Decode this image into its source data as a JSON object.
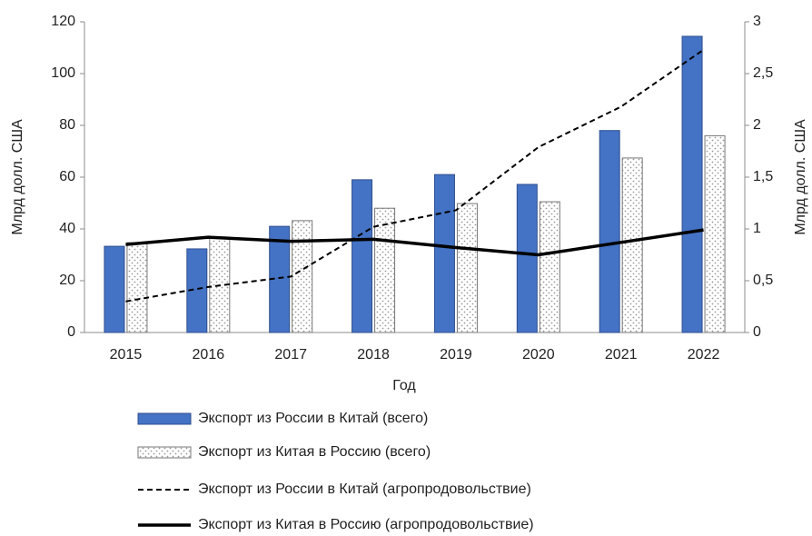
{
  "chart_data": {
    "type": "bar",
    "x_label": "Год",
    "y_label": "Млрд долл. США",
    "y2_label": "Млрд долл. США",
    "categories": [
      "2015",
      "2016",
      "2017",
      "2018",
      "2019",
      "2020",
      "2021",
      "2022"
    ],
    "series": [
      {
        "name": "Экспорт из России в Китай (всего)",
        "type": "bar",
        "color": "#4472c4",
        "values": [
          33.3,
          32.3,
          41,
          59,
          61,
          57.2,
          78,
          114.4
        ]
      },
      {
        "name": "Экспорт из Китая в Россию (всего)",
        "type": "bar",
        "color": "#ffffff",
        "pattern": "dots",
        "values": [
          34.7,
          36.8,
          43.2,
          48,
          49.8,
          50.5,
          67.4,
          76
        ]
      },
      {
        "name": "Экспорт из России в Китай (агропродовольствие)",
        "type": "line",
        "axis": "y2",
        "color": "#000000",
        "dash": "dashed",
        "values": [
          0.3,
          0.44,
          0.54,
          1.02,
          1.18,
          1.79,
          2.18,
          2.73
        ]
      },
      {
        "name": "Экспорт из Китая в Россию (агропродовольствие)",
        "type": "line",
        "axis": "y2",
        "color": "#000000",
        "dash": "solid",
        "values": [
          0.85,
          0.92,
          0.88,
          0.9,
          0.82,
          0.75,
          0.87,
          0.99
        ]
      }
    ],
    "ylim": [
      0,
      120
    ],
    "yticks": [
      0,
      20,
      40,
      60,
      80,
      100,
      120
    ],
    "y2lim": [
      0,
      3
    ],
    "y2ticks": [
      0,
      {
        "value": 0.5,
        "label": "0,5"
      },
      1,
      {
        "value": 1.5,
        "label": "1,5"
      },
      2,
      {
        "value": 2.5,
        "label": "2,5"
      },
      3
    ],
    "legend": "bottom",
    "grid": false
  }
}
